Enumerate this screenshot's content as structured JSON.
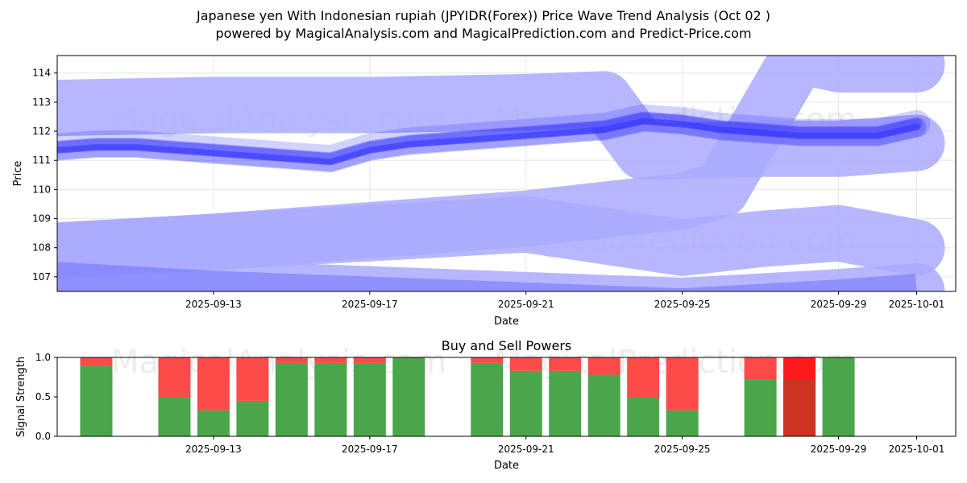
{
  "title_line1": "Japanese yen With Indonesian rupiah (JPYIDR(Forex)) Price Wave Trend Analysis (Oct 02 )",
  "title_line2": "powered by MagicalAnalysis.com and MagicalPrediction.com and Predict-Price.com",
  "watermarks": [
    "MagicalAnalysis.com",
    "MagicalPrediction.com"
  ],
  "colors": {
    "band": "#aaaaff",
    "band_dark": "#7777ff",
    "wave": "#3333ff",
    "buy": "#4aa64a",
    "sell": "#ff4a4a",
    "sell_strong": "#ff1a1a",
    "overlap": "#cc3322",
    "grid": "#e6e6e6"
  },
  "chart_data": [
    {
      "type": "line",
      "title": "",
      "xlabel": "Date",
      "ylabel": "Price",
      "ylim": [
        106.5,
        114.6
      ],
      "xlim": [
        "2025-09-09",
        "2025-10-02"
      ],
      "x_ticks": [
        "2025-09-13",
        "2025-09-17",
        "2025-09-21",
        "2025-09-25",
        "2025-09-29",
        "2025-10-01"
      ],
      "y_ticks": [
        107,
        108,
        109,
        110,
        111,
        112,
        113,
        114
      ],
      "grid": true,
      "series": [
        {
          "name": "upper band",
          "style": "band",
          "x": [
            "2025-09-09",
            "2025-09-13",
            "2025-09-17",
            "2025-09-21",
            "2025-09-23",
            "2025-09-24",
            "2025-09-27",
            "2025-09-29",
            "2025-10-01"
          ],
          "values": [
            112.8,
            112.9,
            112.9,
            113.0,
            113.1,
            111.3,
            111.4,
            111.4,
            111.6
          ]
        },
        {
          "name": "lower band",
          "style": "band",
          "x": [
            "2025-09-09",
            "2025-09-13",
            "2025-09-17",
            "2025-09-21",
            "2025-09-25",
            "2025-09-27",
            "2025-09-29",
            "2025-10-01"
          ],
          "values": [
            107.9,
            108.2,
            108.5,
            108.8,
            108.0,
            108.3,
            108.5,
            108.0
          ]
        },
        {
          "name": "lower band 2",
          "style": "band",
          "x": [
            "2025-09-09",
            "2025-09-13",
            "2025-09-17",
            "2025-09-21",
            "2025-09-25",
            "2025-09-29",
            "2025-10-01"
          ],
          "values": [
            106.9,
            106.6,
            106.4,
            106.2,
            106.0,
            106.3,
            106.5
          ]
        },
        {
          "name": "breakout",
          "style": "band",
          "x": [
            "2025-09-09",
            "2025-09-13",
            "2025-09-17",
            "2025-09-21",
            "2025-09-25",
            "2025-09-26",
            "2025-09-28",
            "2025-09-29",
            "2025-10-01"
          ],
          "values": [
            107.9,
            108.2,
            108.6,
            109.0,
            109.6,
            110.0,
            114.6,
            114.3,
            114.3
          ]
        },
        {
          "name": "price wave",
          "style": "wave",
          "x": [
            "2025-09-09",
            "2025-09-10",
            "2025-09-11",
            "2025-09-12",
            "2025-09-13",
            "2025-09-14",
            "2025-09-15",
            "2025-09-16",
            "2025-09-17",
            "2025-09-18",
            "2025-09-19",
            "2025-09-20",
            "2025-09-21",
            "2025-09-22",
            "2025-09-23",
            "2025-09-24",
            "2025-09-25",
            "2025-09-26",
            "2025-09-27",
            "2025-09-28",
            "2025-09-29",
            "2025-09-30",
            "2025-10-01"
          ],
          "values": [
            111.4,
            111.5,
            111.5,
            111.4,
            111.3,
            111.2,
            111.1,
            111.0,
            111.4,
            111.6,
            111.7,
            111.8,
            111.9,
            112.0,
            112.1,
            112.4,
            112.3,
            112.1,
            112.0,
            111.9,
            111.9,
            111.9,
            112.2
          ]
        }
      ]
    },
    {
      "type": "bar",
      "title": "Buy and Sell Powers",
      "xlabel": "Date",
      "ylabel": "Signal Strength",
      "ylim": [
        0,
        1.0
      ],
      "y_ticks": [
        0.0,
        0.5,
        1.0
      ],
      "x_ticks": [
        "2025-09-13",
        "2025-09-17",
        "2025-09-21",
        "2025-09-25",
        "2025-09-29",
        "2025-10-01"
      ],
      "categories": [
        "2025-09-10",
        "2025-09-12",
        "2025-09-13",
        "2025-09-14",
        "2025-09-15",
        "2025-09-16",
        "2025-09-17",
        "2025-09-18",
        "2025-09-20",
        "2025-09-21",
        "2025-09-22",
        "2025-09-23",
        "2025-09-24",
        "2025-09-25",
        "2025-09-27",
        "2025-09-28",
        "2025-09-29",
        "2025-09-30"
      ],
      "series": [
        {
          "name": "Buy",
          "values": [
            0.89,
            0.5,
            0.33,
            0.45,
            0.93,
            0.93,
            0.93,
            1.0,
            0.93,
            0.83,
            0.83,
            0.78,
            0.5,
            0.33,
            0.72,
            0.72,
            1.0,
            0.0
          ]
        },
        {
          "name": "Sell",
          "values": [
            0.11,
            0.5,
            0.67,
            0.55,
            0.07,
            0.07,
            0.07,
            0.0,
            0.07,
            0.17,
            0.17,
            0.22,
            0.5,
            0.67,
            0.28,
            1.0,
            0.0,
            0.0
          ]
        }
      ]
    }
  ]
}
